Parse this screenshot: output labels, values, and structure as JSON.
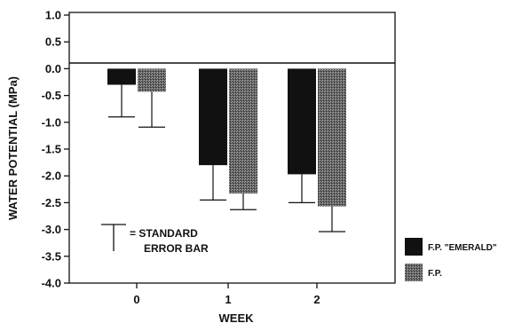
{
  "chart_data": {
    "type": "bar",
    "title": "",
    "xlabel": "WEEK",
    "ylabel": "WATER POTENTIAL (MPa)",
    "ylim": [
      -4.0,
      1.0
    ],
    "yticks": [
      "1.0",
      "0.5",
      "0.0",
      "-0.5",
      "-1.0",
      "-1.5",
      "-2.0",
      "-2.5",
      "-3.0",
      "-3.5",
      "-4.0"
    ],
    "categories": [
      "0",
      "1",
      "2"
    ],
    "series": [
      {
        "name": "F.P. \"EMERALD\"",
        "color": "#111111",
        "values": [
          -0.3,
          -1.8,
          -1.97
        ],
        "error": [
          0.6,
          0.65,
          0.53
        ]
      },
      {
        "name": "F.P.",
        "color": "#6e6e6e",
        "values": [
          -0.43,
          -2.33,
          -2.57
        ],
        "error": [
          0.66,
          0.3,
          0.47
        ]
      }
    ],
    "error_bar_direction": "down",
    "grid": false,
    "legend_position": "right-bottom",
    "annotation": {
      "line1": "= STANDARD",
      "line2": "ERROR BAR"
    }
  }
}
